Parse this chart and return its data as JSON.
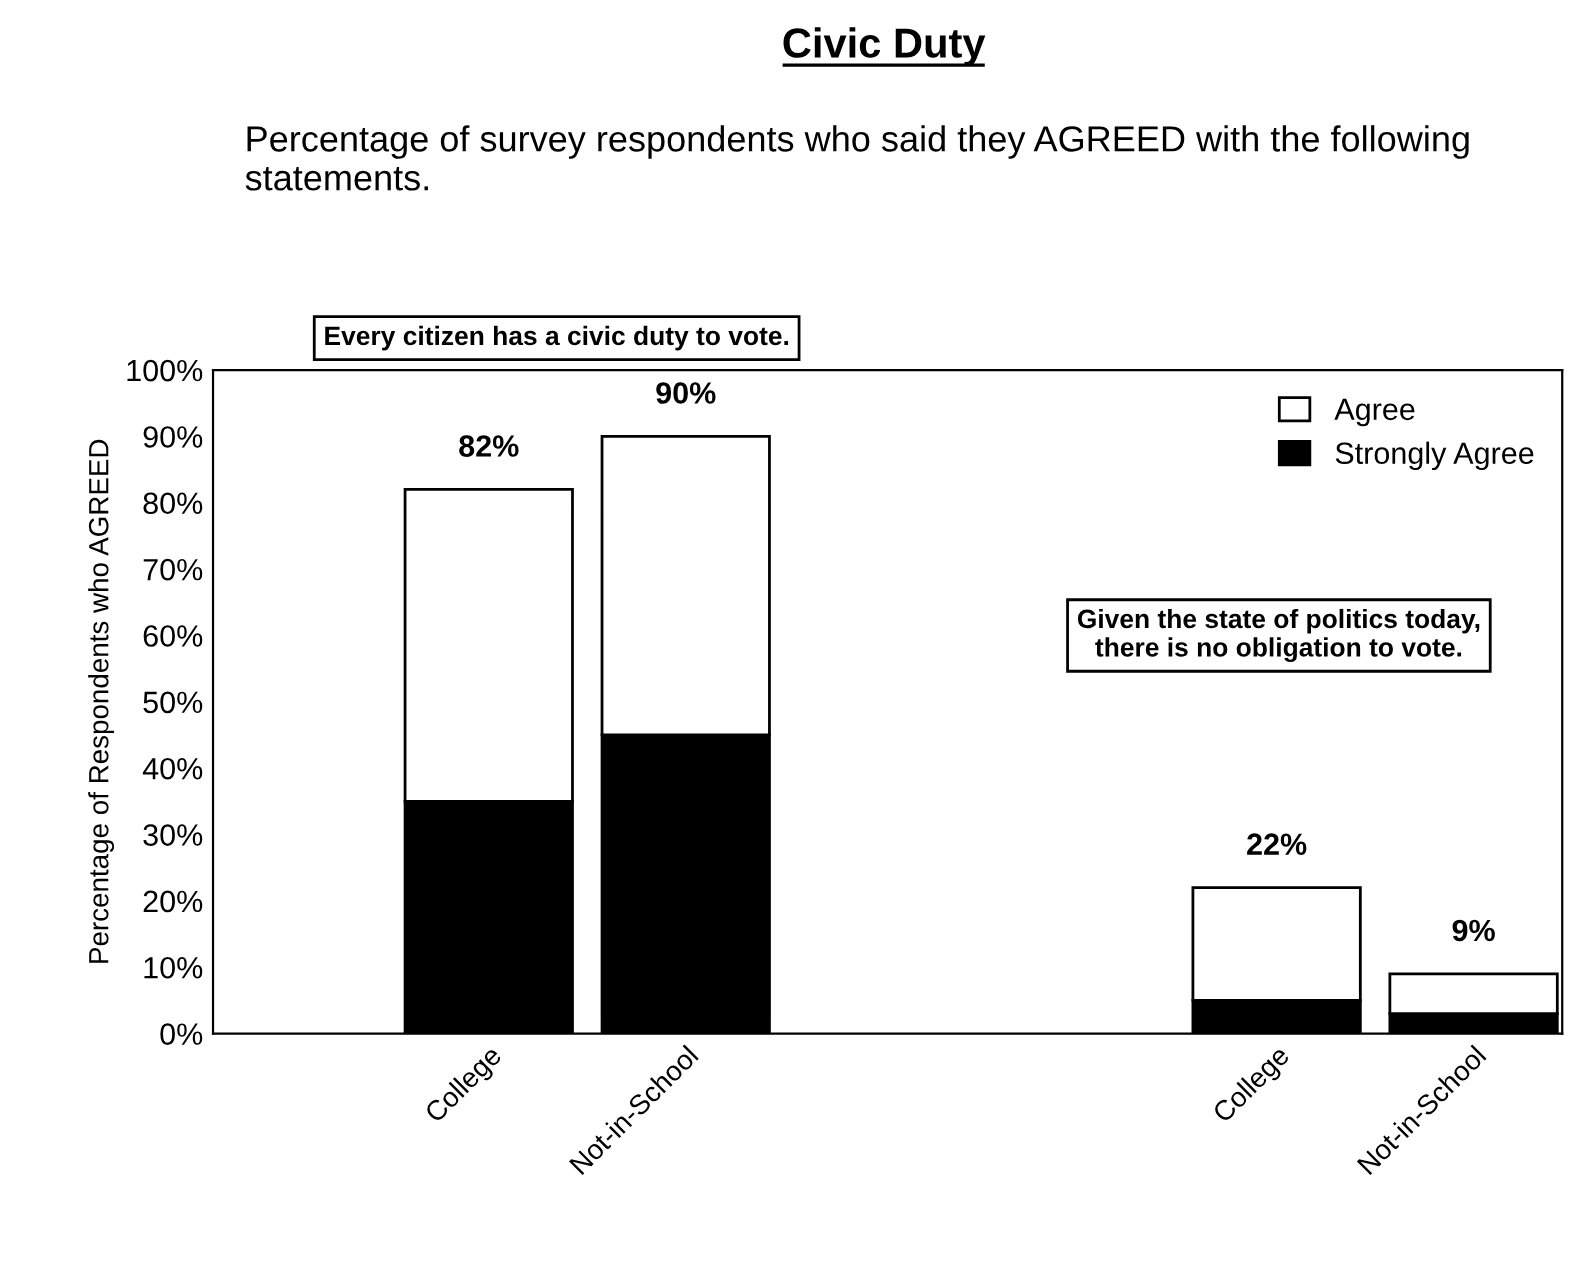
{
  "chart_data": {
    "type": "bar",
    "title": "Civic Duty",
    "subtitle": "Percentage of survey respondents who said they AGREED with the following statements.",
    "ylabel": "Percentage of Respondents who AGREED",
    "categories": [
      "College",
      "Not-in-School",
      null,
      null,
      "College",
      "Not-in-School"
    ],
    "stacked": true,
    "series": [
      {
        "name": "Strongly Agree",
        "color": "#000000",
        "values": [
          35,
          45,
          null,
          null,
          5,
          3
        ]
      },
      {
        "name": "Agree",
        "color": "#ffffff",
        "values": [
          47,
          45,
          null,
          null,
          17,
          6
        ]
      }
    ],
    "totals": [
      "82%",
      "90%",
      null,
      null,
      "22%",
      "9%"
    ],
    "ylim": [
      0,
      100
    ],
    "yticks": [
      {
        "value": 0,
        "label": "0%"
      },
      {
        "value": 10,
        "label": "10%"
      },
      {
        "value": 20,
        "label": "20%"
      },
      {
        "value": 30,
        "label": "30%"
      },
      {
        "value": 40,
        "label": "40%"
      },
      {
        "value": 50,
        "label": "50%"
      },
      {
        "value": 60,
        "label": "60%"
      },
      {
        "value": 70,
        "label": "70%"
      },
      {
        "value": 80,
        "label": "80%"
      },
      {
        "value": 90,
        "label": "90%"
      },
      {
        "value": 100,
        "label": "100%"
      }
    ],
    "annotations": [
      "Every citizen has a civic duty to vote.",
      "Given the state of politics today, there is no obligation to vote."
    ],
    "legend": "top right",
    "grid": false
  }
}
